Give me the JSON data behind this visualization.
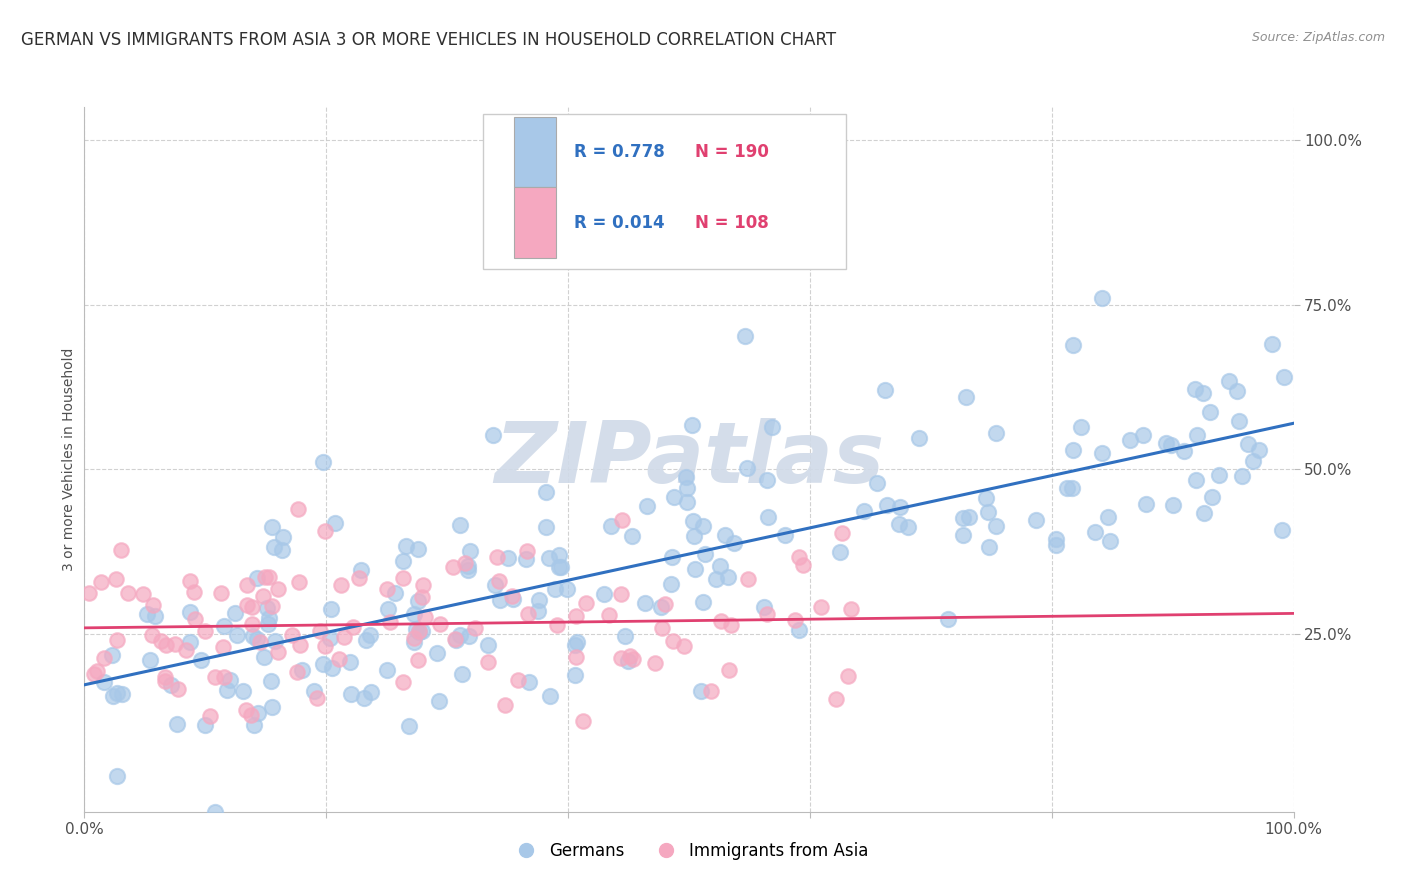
{
  "title": "GERMAN VS IMMIGRANTS FROM ASIA 3 OR MORE VEHICLES IN HOUSEHOLD CORRELATION CHART",
  "source": "Source: ZipAtlas.com",
  "ylabel": "3 or more Vehicles in Household",
  "ytick_labels": [
    "25.0%",
    "50.0%",
    "75.0%",
    "100.0%"
  ],
  "ytick_values": [
    0.25,
    0.5,
    0.75,
    1.0
  ],
  "blue_R": 0.778,
  "blue_N": 190,
  "pink_R": 0.014,
  "pink_N": 108,
  "blue_scatter_color": "#a8c8e8",
  "pink_scatter_color": "#f5a8c0",
  "blue_line_color": "#3070c0",
  "pink_line_color": "#e04070",
  "background_color": "#ffffff",
  "grid_color": "#cccccc",
  "title_color": "#303030",
  "title_fontsize": 12,
  "legend_R_color": "#3070c0",
  "legend_N_color": "#e04070",
  "watermark_color": "#d0dae8",
  "xlim": [
    0.0,
    1.0
  ],
  "ylim": [
    -0.02,
    1.05
  ]
}
